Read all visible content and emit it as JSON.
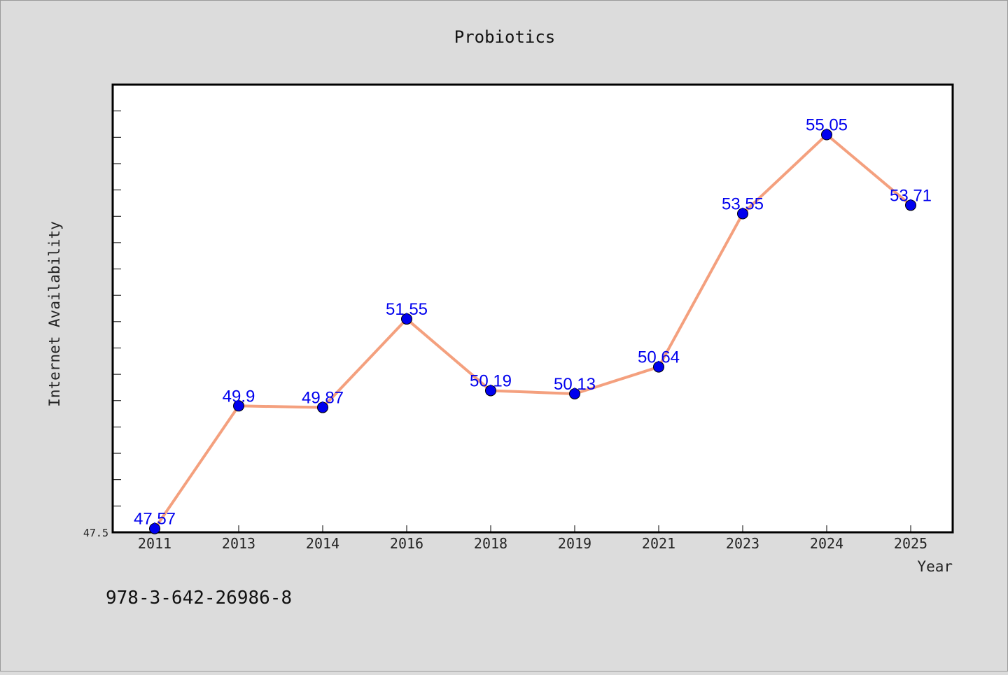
{
  "chart_data": {
    "type": "line",
    "title": "Probiotics",
    "xlabel": "Year",
    "ylabel": "Internet Availability",
    "categories": [
      "2011",
      "2013",
      "2014",
      "2016",
      "2018",
      "2019",
      "2021",
      "2023",
      "2024",
      "2025"
    ],
    "series": [
      {
        "values": [
          47.57,
          49.9,
          49.87,
          51.55,
          50.19,
          50.13,
          50.64,
          53.55,
          55.05,
          53.71
        ],
        "labels": [
          "47.57",
          "49.9",
          "49.87",
          "51.55",
          "50.19",
          "50.13",
          "50.64",
          "53.55",
          "55.05",
          "53.71"
        ],
        "line_color": "#f4a07e",
        "marker_color": "#0000ee"
      }
    ],
    "ylim": [
      47.5,
      56.0
    ],
    "yticks_labeled": [
      "47.5"
    ],
    "grid": false,
    "legend": "none"
  },
  "footer_text": "978-3-642-26986-8"
}
